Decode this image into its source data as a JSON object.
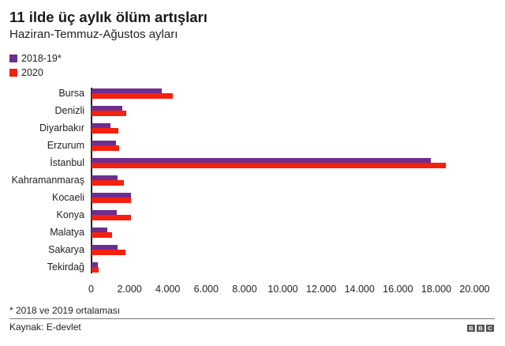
{
  "header": {
    "title": "11 ilde üç aylık ölüm artışları",
    "subtitle": "Haziran-Temmuz-Ağustos ayları"
  },
  "legend": [
    {
      "label": "2018-19*",
      "color": "#6E2D91"
    },
    {
      "label": "2020",
      "color": "#F4210E"
    }
  ],
  "footer": {
    "footnote": "* 2018 ve 2019 ortalaması",
    "source": "Kaynak: E-devlet",
    "logo": [
      "B",
      "B",
      "C"
    ]
  },
  "axis": {
    "ticks": [
      "0",
      "2.000",
      "4.000",
      "6.000",
      "8.000",
      "10.000",
      "12.000",
      "14.000",
      "16.000",
      "18.000",
      "20.000"
    ]
  },
  "chart_data": {
    "type": "bar",
    "orientation": "horizontal",
    "title": "11 ilde üç aylık ölüm artışları",
    "subtitle": "Haziran-Temmuz-Ağustos ayları",
    "xlabel": "",
    "ylabel": "",
    "xlim": [
      0,
      20000
    ],
    "grid": false,
    "legend_position": "top-left",
    "categories": [
      "Bursa",
      "Denizli",
      "Diyarbakır",
      "Erzurum",
      "İstanbul",
      "Kahramanmaraş",
      "Kocaeli",
      "Konya",
      "Malatya",
      "Sakarya",
      "Tekirdağ"
    ],
    "series": [
      {
        "name": "2018-19*",
        "color": "#6E2D91",
        "values": [
          3680,
          1630,
          990,
          1300,
          17700,
          1360,
          2060,
          1320,
          850,
          1390,
          330
        ]
      },
      {
        "name": "2020",
        "color": "#F4210E",
        "values": [
          4250,
          1850,
          1400,
          1480,
          18500,
          1700,
          2060,
          2060,
          1100,
          1770,
          400
        ]
      }
    ],
    "tick_labels": [
      "0",
      "2.000",
      "4.000",
      "6.000",
      "8.000",
      "10.000",
      "12.000",
      "14.000",
      "16.000",
      "18.000",
      "20.000"
    ],
    "footnote": "* 2018 ve 2019 ortalaması",
    "source": "Kaynak: E-devlet"
  }
}
